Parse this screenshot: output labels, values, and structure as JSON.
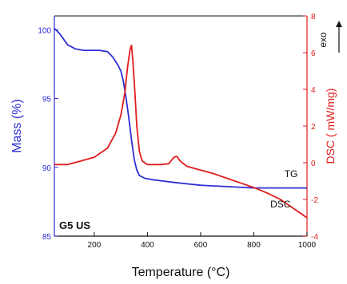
{
  "chart_data": {
    "type": "line",
    "x_label": "Temperature (°C)",
    "x_range": [
      50,
      1000
    ],
    "x_ticks": [
      200,
      400,
      600,
      800,
      1000
    ],
    "y_left_label": "Mass (%)",
    "y_left_range": [
      85,
      101
    ],
    "y_left_ticks": [
      85,
      90,
      95,
      100
    ],
    "y_right_label": "DSC ( mW/mg)",
    "y_right_range": [
      -4,
      8
    ],
    "y_right_ticks": [
      -4,
      -2,
      0,
      2,
      4,
      6,
      8
    ],
    "exo_label": "exo",
    "sample_label": "G5 US",
    "colors": {
      "tg": "#2d2dd6",
      "dsc": "#e01c1c",
      "axes": "#111111"
    },
    "series": [
      {
        "name": "TG",
        "axis": "left",
        "x": [
          50,
          70,
          100,
          130,
          160,
          190,
          220,
          250,
          270,
          290,
          300,
          310,
          320,
          330,
          340,
          350,
          360,
          370,
          390,
          420,
          460,
          500,
          550,
          600,
          700,
          800,
          900,
          950,
          1000
        ],
        "y": [
          100.1,
          99.7,
          98.9,
          98.6,
          98.5,
          98.5,
          98.5,
          98.4,
          98.0,
          97.4,
          97.0,
          96.2,
          95.0,
          93.6,
          92.0,
          90.6,
          89.8,
          89.4,
          89.2,
          89.1,
          89.0,
          88.9,
          88.8,
          88.7,
          88.6,
          88.5,
          88.5,
          88.5,
          88.5
        ]
      },
      {
        "name": "DSC",
        "axis": "right",
        "x": [
          50,
          100,
          150,
          200,
          250,
          280,
          300,
          315,
          325,
          335,
          340,
          345,
          352,
          360,
          370,
          380,
          400,
          420,
          450,
          480,
          500,
          510,
          520,
          530,
          550,
          600,
          650,
          700,
          750,
          800,
          850,
          900,
          950,
          1000
        ],
        "y": [
          -0.1,
          -0.1,
          0.1,
          0.3,
          0.8,
          1.6,
          2.6,
          3.8,
          5.2,
          6.2,
          6.4,
          5.6,
          4.0,
          2.0,
          0.6,
          0.1,
          -0.1,
          -0.1,
          -0.1,
          -0.05,
          0.3,
          0.35,
          0.15,
          0.0,
          -0.2,
          -0.4,
          -0.6,
          -0.85,
          -1.1,
          -1.35,
          -1.65,
          -2.0,
          -2.5,
          -3.0
        ]
      }
    ],
    "annotations": [
      {
        "text": "TG",
        "x": 940,
        "y_left": 89.3
      },
      {
        "text": "DSC",
        "x": 900,
        "y_left": 87.1
      }
    ]
  }
}
